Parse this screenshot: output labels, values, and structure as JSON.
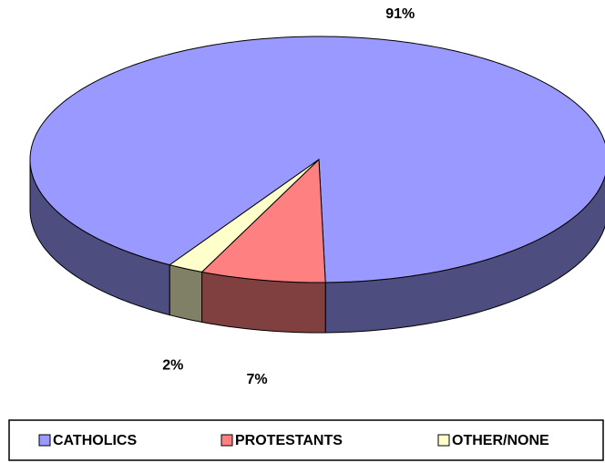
{
  "chart_data": {
    "type": "pie3d",
    "categories": [
      "CATHOLICS",
      "PROTESTANTS",
      "OTHER/NONE"
    ],
    "values": [
      91,
      7,
      2
    ],
    "value_labels": [
      "91%",
      "7%",
      "2%"
    ],
    "colors": [
      "#9999ff",
      "#ff8080",
      "#ffffcc"
    ],
    "side_colors": [
      "#4d4d80",
      "#804040",
      "#808066"
    ],
    "legend": "bottom"
  }
}
